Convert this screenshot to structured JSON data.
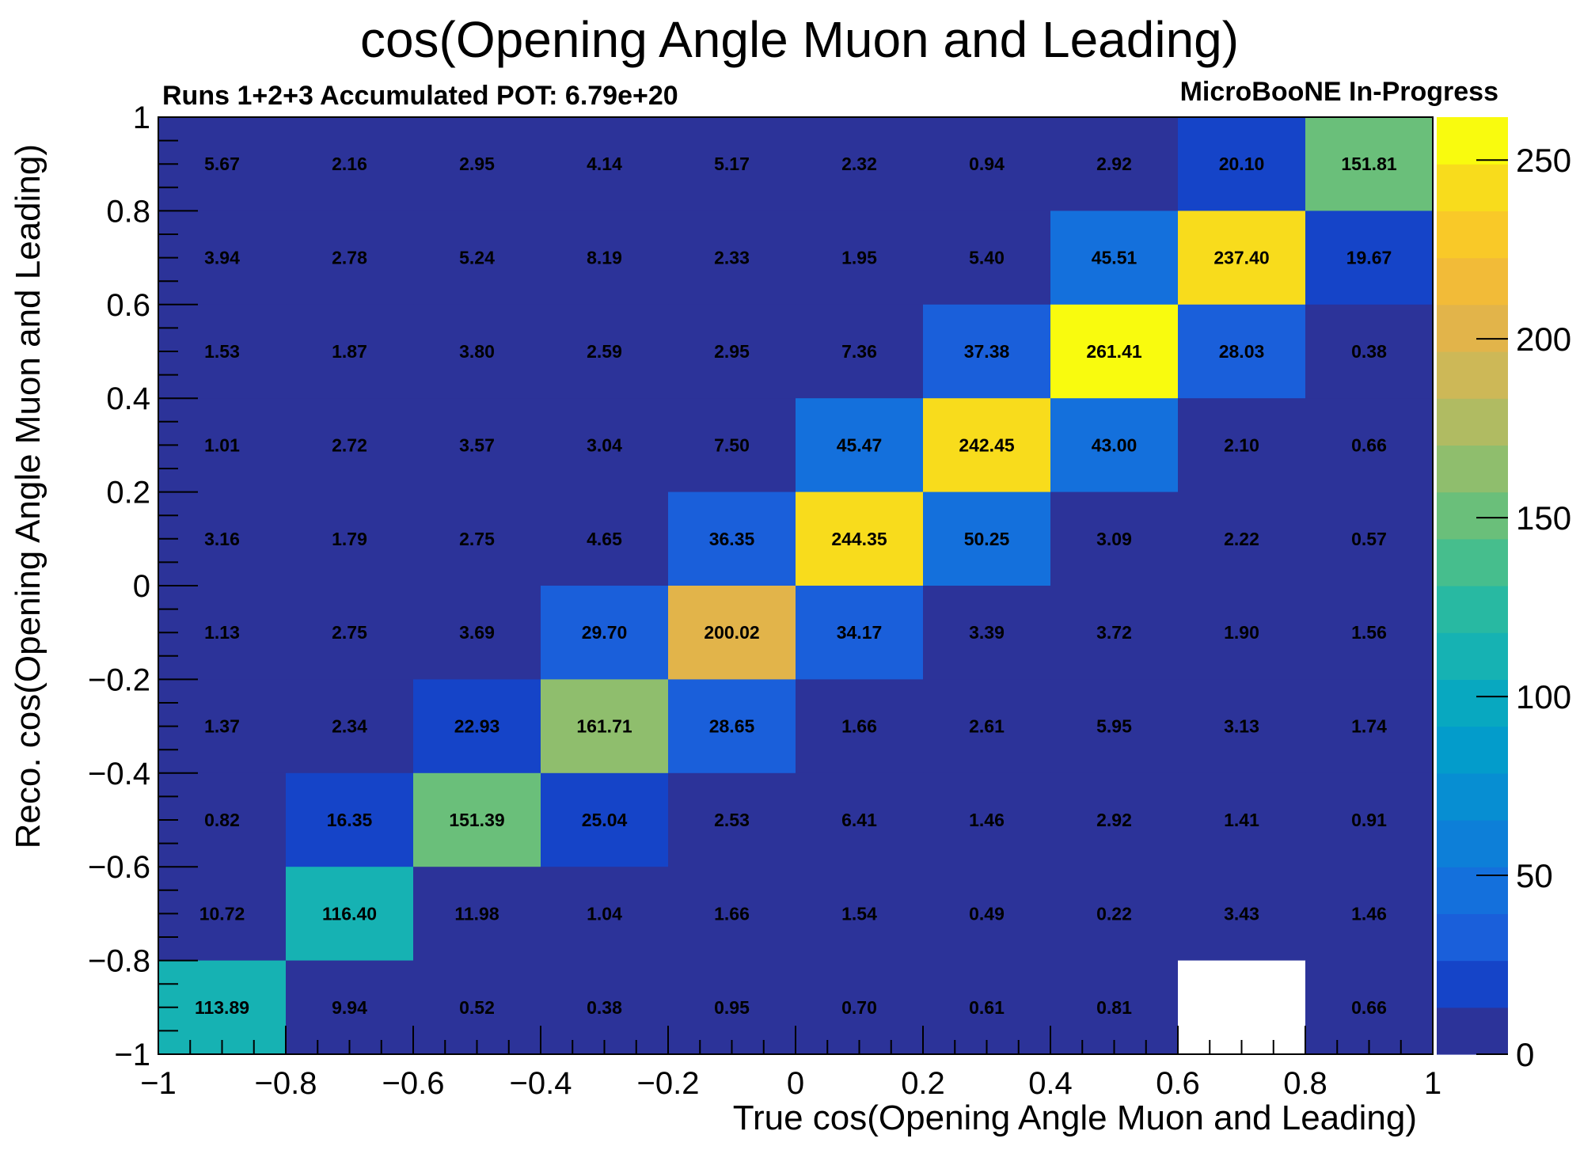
{
  "chart_data": {
    "type": "heatmap",
    "title": "cos(Opening Angle Muon and Leading)",
    "subtitle_left": "Runs 1+2+3 Accumulated POT: 6.79e+20",
    "subtitle_right": "MicroBooNE In-Progress",
    "xlabel": "True cos(Opening Angle Muon and Leading)",
    "ylabel": "Reco. cos(Opening Angle Muon and Leading)",
    "xlim": [
      -1,
      1
    ],
    "ylim": [
      -1,
      1
    ],
    "x_edges": [
      -1,
      -0.8,
      -0.6,
      -0.4,
      -0.2,
      0,
      0.2,
      0.4,
      0.6,
      0.8,
      1
    ],
    "y_edges": [
      -1,
      -0.8,
      -0.6,
      -0.4,
      -0.2,
      0,
      0.2,
      0.4,
      0.6,
      0.8,
      1
    ],
    "x_tick_labels": [
      "−1",
      "−0.8",
      "−0.6",
      "−0.4",
      "−0.2",
      "0",
      "0.2",
      "0.4",
      "0.6",
      "0.8",
      "1"
    ],
    "y_tick_labels": [
      "−1",
      "−0.8",
      "−0.6",
      "−0.4",
      "−0.2",
      "0",
      "0.2",
      "0.4",
      "0.6",
      "0.8",
      "1"
    ],
    "colorbar": {
      "min": 0,
      "max": 262,
      "ticks": [
        0,
        50,
        100,
        150,
        200,
        250
      ]
    },
    "rows_top_to_bottom": [
      {
        "values": [
          5.67,
          2.16,
          2.95,
          4.14,
          5.17,
          2.32,
          0.94,
          2.92,
          20.1,
          151.81
        ],
        "labels": [
          "5.67",
          "2.16",
          "2.95",
          "4.14",
          "5.17",
          "2.32",
          "0.94",
          "2.92",
          "20.10",
          "151.81"
        ]
      },
      {
        "values": [
          3.94,
          2.78,
          5.24,
          8.19,
          2.33,
          1.95,
          5.4,
          45.51,
          237.4,
          19.67
        ],
        "labels": [
          "3.94",
          "2.78",
          "5.24",
          "8.19",
          "2.33",
          "1.95",
          "5.40",
          "45.51",
          "237.40",
          "19.67"
        ]
      },
      {
        "values": [
          1.53,
          1.87,
          3.8,
          2.59,
          2.95,
          7.36,
          37.38,
          261.41,
          28.03,
          0.38
        ],
        "labels": [
          "1.53",
          "1.87",
          "3.80",
          "2.59",
          "2.95",
          "7.36",
          "37.38",
          "261.41",
          "28.03",
          "0.38"
        ]
      },
      {
        "values": [
          1.01,
          2.72,
          3.57,
          3.04,
          7.5,
          45.47,
          242.45,
          43.0,
          2.1,
          0.66
        ],
        "labels": [
          "1.01",
          "2.72",
          "3.57",
          "3.04",
          "7.50",
          "45.47",
          "242.45",
          "43.00",
          "2.10",
          "0.66"
        ]
      },
      {
        "values": [
          3.16,
          1.79,
          2.75,
          4.65,
          36.35,
          244.35,
          50.25,
          3.09,
          2.22,
          0.57
        ],
        "labels": [
          "3.16",
          "1.79",
          "2.75",
          "4.65",
          "36.35",
          "244.35",
          "50.25",
          "3.09",
          "2.22",
          "0.57"
        ]
      },
      {
        "values": [
          1.13,
          2.75,
          3.69,
          29.7,
          200.02,
          34.17,
          3.39,
          3.72,
          1.9,
          1.56
        ],
        "labels": [
          "1.13",
          "2.75",
          "3.69",
          "29.70",
          "200.02",
          "34.17",
          "3.39",
          "3.72",
          "1.90",
          "1.56"
        ]
      },
      {
        "values": [
          1.37,
          2.34,
          22.93,
          161.71,
          28.65,
          1.66,
          2.61,
          5.95,
          3.13,
          1.74
        ],
        "labels": [
          "1.37",
          "2.34",
          "22.93",
          "161.71",
          "28.65",
          "1.66",
          "2.61",
          "5.95",
          "3.13",
          "1.74"
        ]
      },
      {
        "values": [
          0.82,
          16.35,
          151.39,
          25.04,
          2.53,
          6.41,
          1.46,
          2.92,
          1.41,
          0.91
        ],
        "labels": [
          "0.82",
          "16.35",
          "151.39",
          "25.04",
          "2.53",
          "6.41",
          "1.46",
          "2.92",
          "1.41",
          "0.91"
        ]
      },
      {
        "values": [
          10.72,
          116.4,
          11.98,
          1.04,
          1.66,
          1.54,
          0.49,
          0.22,
          3.43,
          1.46
        ],
        "labels": [
          "10.72",
          "116.40",
          "11.98",
          "1.04",
          "1.66",
          "1.54",
          "0.49",
          "0.22",
          "3.43",
          "1.46"
        ]
      },
      {
        "values": [
          113.89,
          9.94,
          0.52,
          0.38,
          0.95,
          0.7,
          0.61,
          0.81,
          null,
          0.66
        ],
        "labels": [
          "113.89",
          "9.94",
          "0.52",
          "0.38",
          "0.95",
          "0.70",
          "0.61",
          "0.81",
          "",
          "0.66"
        ]
      }
    ],
    "palette": [
      "#2c3399",
      "#1544c8",
      "#1a5fda",
      "#1470dc",
      "#0d7fd8",
      "#078ed2",
      "#039ccb",
      "#08a8c0",
      "#16b2b3",
      "#28b9a2",
      "#46be8d",
      "#6abf7a",
      "#8fbe6d",
      "#b0bb62",
      "#cdb857",
      "#e2b44a",
      "#f2bb38",
      "#f9c928",
      "#f8dc1c",
      "#f9fb0e"
    ]
  }
}
